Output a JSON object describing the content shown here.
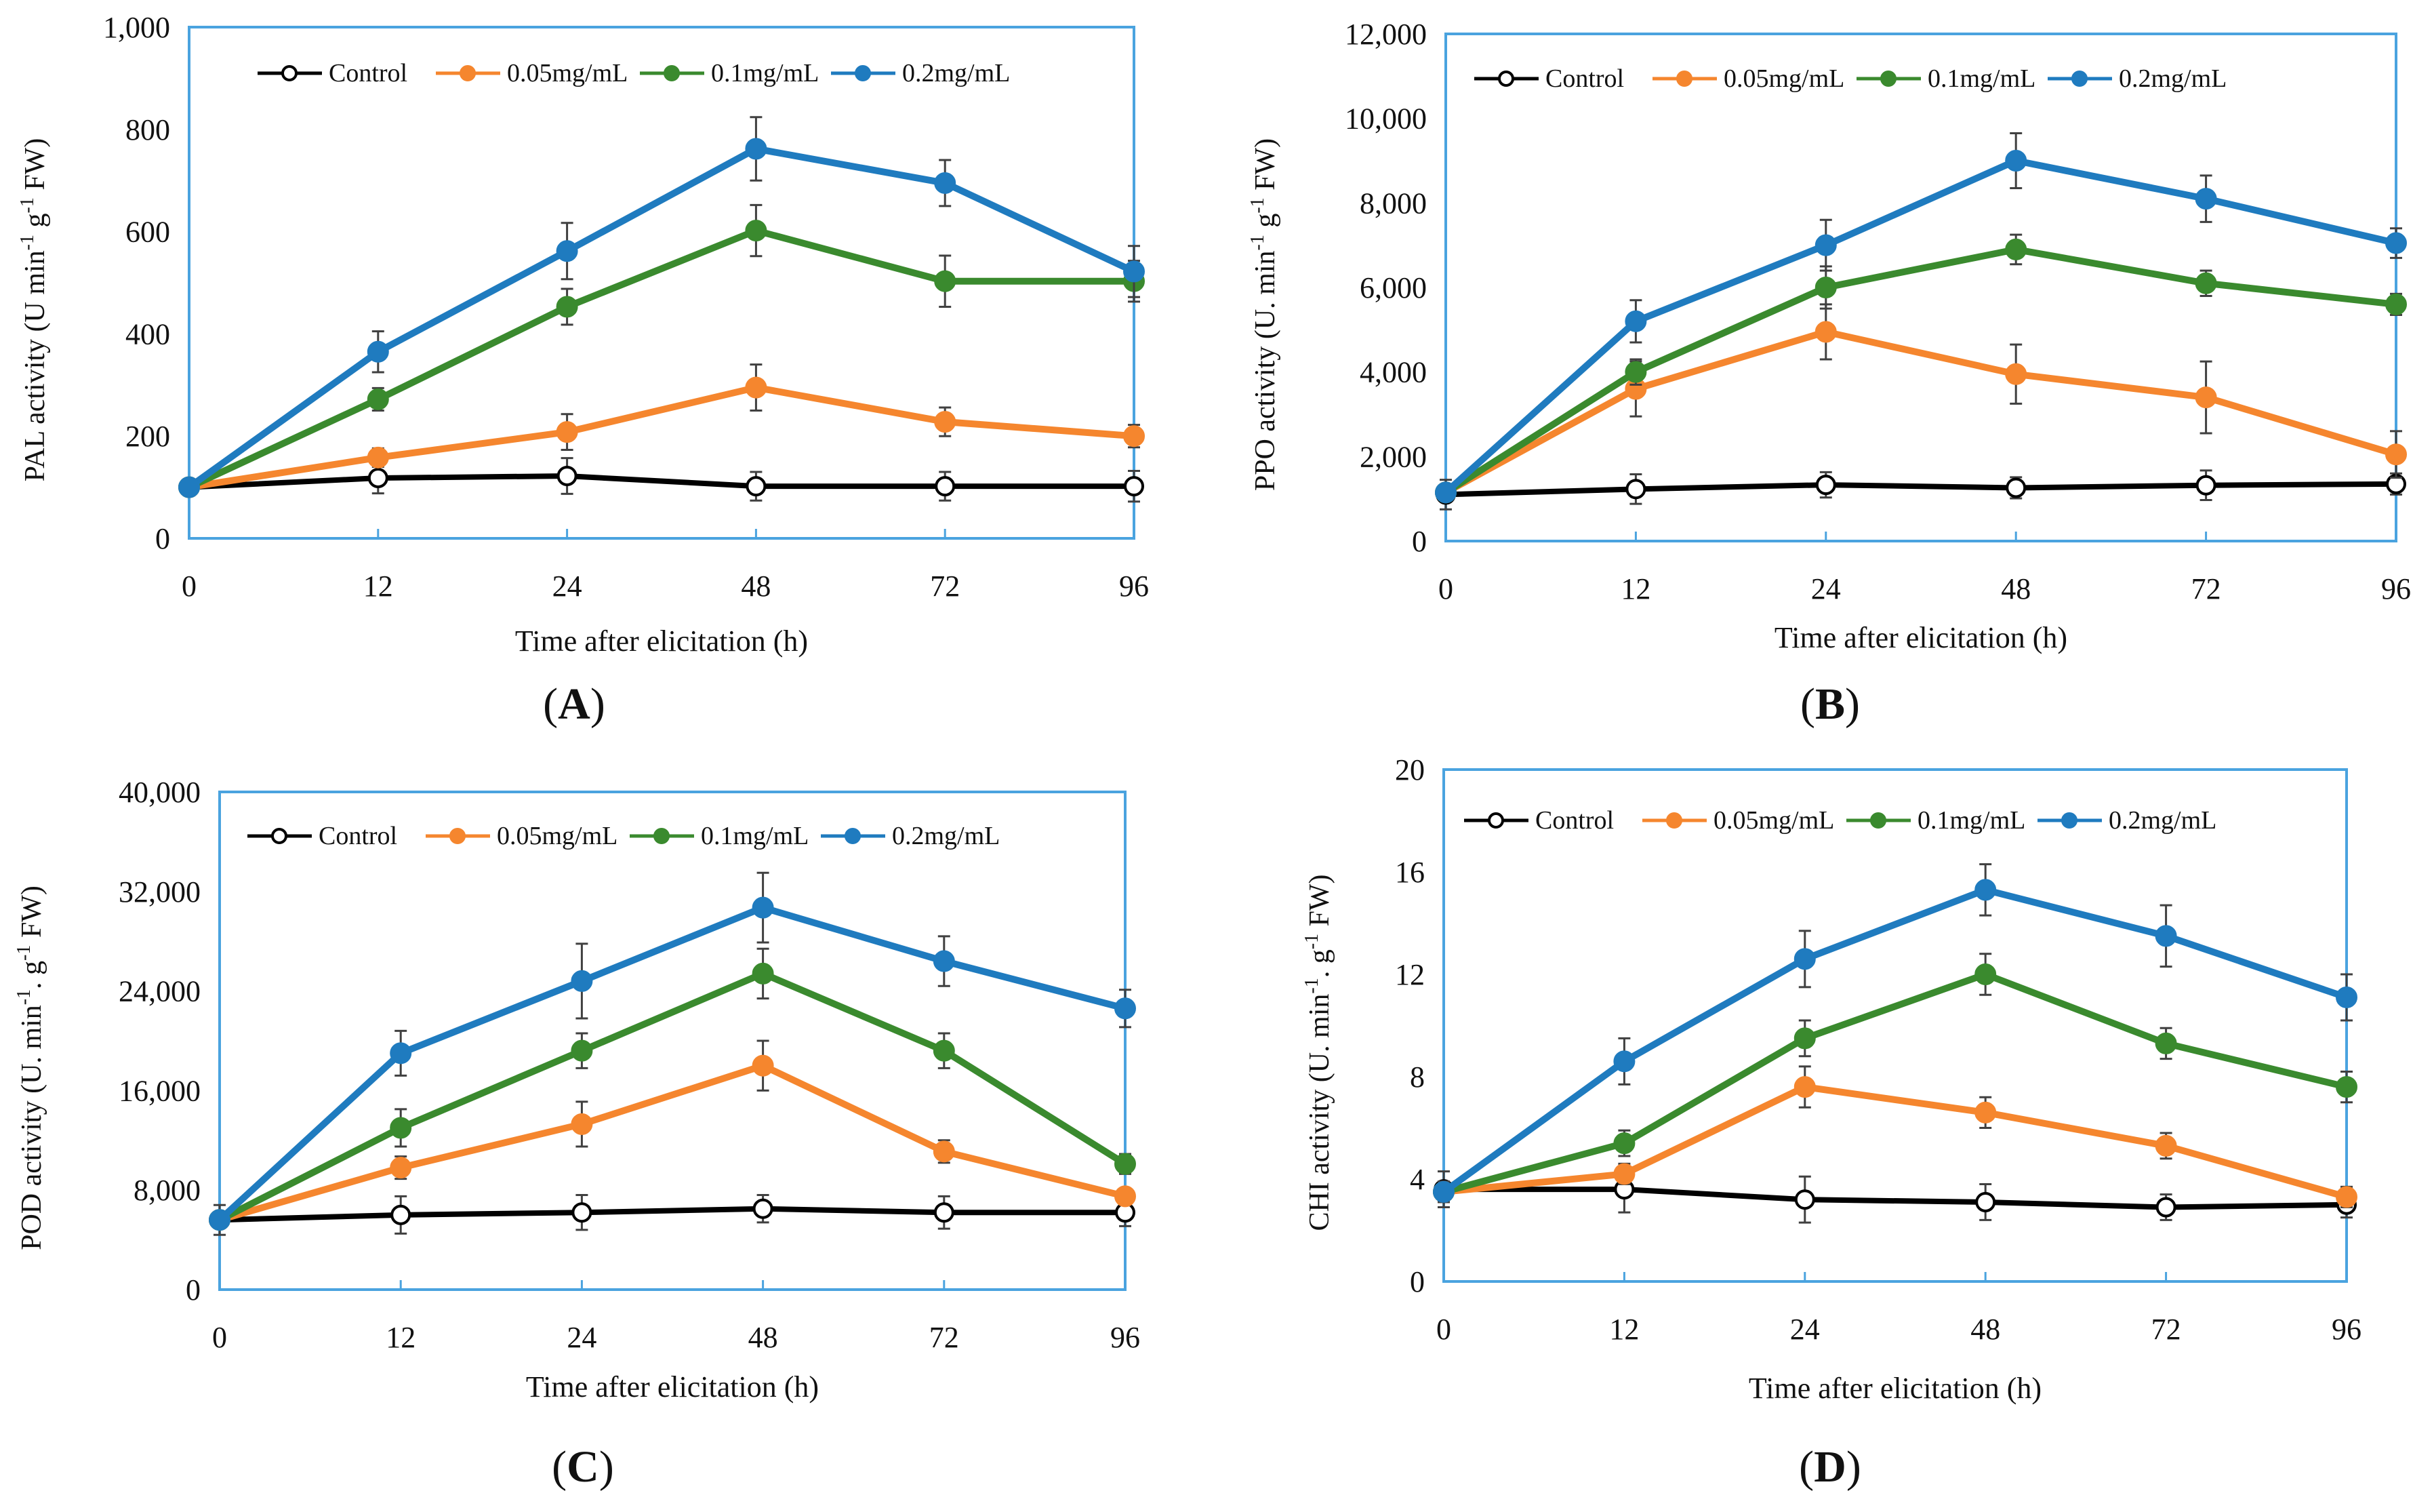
{
  "colors": {
    "control": "#000000",
    "c005": "#f5862e",
    "c01": "#3a8a2e",
    "c02": "#1f7bbf",
    "frame": "#4aa3df",
    "err": "#404040"
  },
  "chart_data": [
    {
      "type": "line",
      "caption": "(A)",
      "caption_letter": "A",
      "title": "",
      "xlabel": "Time after elicitation (h)",
      "ylabel": "PAL activity (U min-1 g-1 FW)",
      "ylabel_main": "PAL activity (U min",
      "ylabel_sup1": "-1",
      "ylabel_mid": " g",
      "ylabel_sup2": "-1",
      "ylabel_end": " FW)",
      "categories": [
        "0",
        "12",
        "24",
        "48",
        "72",
        "96"
      ],
      "ylim": [
        0,
        1000
      ],
      "yticks": [
        0,
        200,
        400,
        600,
        800,
        1000
      ],
      "ytick_labels": [
        "0",
        "200",
        "400",
        "600",
        "800",
        "1,000"
      ],
      "legend": "top",
      "series": [
        {
          "name": "Control",
          "values": [
            100,
            118,
            122,
            102,
            102,
            102
          ],
          "errors": [
            15,
            30,
            35,
            28,
            28,
            30
          ]
        },
        {
          "name": "0.05mg/mL",
          "values": [
            100,
            158,
            208,
            295,
            228,
            200
          ],
          "errors": [
            12,
            18,
            35,
            45,
            28,
            22
          ]
        },
        {
          "name": "0.1mg/mL",
          "values": [
            100,
            272,
            453,
            602,
            503,
            503
          ],
          "errors": [
            12,
            22,
            35,
            50,
            50,
            40
          ]
        },
        {
          "name": "0.2mg/mL",
          "values": [
            100,
            365,
            562,
            762,
            695,
            522
          ],
          "errors": [
            12,
            40,
            55,
            62,
            45,
            50
          ]
        }
      ]
    },
    {
      "type": "line",
      "caption": "(B)",
      "caption_letter": "B",
      "title": "",
      "xlabel": "Time after elicitation (h)",
      "ylabel": "PPO activity (U. min-1 g-1 FW)",
      "ylabel_main": "PPO activity (U. min",
      "ylabel_sup1": "-1",
      "ylabel_mid": " g",
      "ylabel_sup2": "-1",
      "ylabel_end": " FW)",
      "categories": [
        "0",
        "12",
        "24",
        "48",
        "72",
        "96"
      ],
      "ylim": [
        0,
        12000
      ],
      "yticks": [
        0,
        2000,
        4000,
        6000,
        8000,
        10000,
        12000
      ],
      "ytick_labels": [
        "0",
        "2,000",
        "4,000",
        "6,000",
        "8,000",
        "10,000",
        "12,000"
      ],
      "legend": "top",
      "series": [
        {
          "name": "Control",
          "values": [
            1100,
            1230,
            1330,
            1260,
            1320,
            1350
          ],
          "errors": [
            350,
            350,
            300,
            250,
            350,
            250
          ]
        },
        {
          "name": "0.05mg/mL",
          "values": [
            1150,
            3600,
            4950,
            3950,
            3400,
            2050
          ],
          "errors": [
            150,
            650,
            650,
            700,
            850,
            550
          ]
        },
        {
          "name": "0.1mg/mL",
          "values": [
            1150,
            4000,
            6000,
            6900,
            6100,
            5600
          ],
          "errors": [
            150,
            300,
            500,
            350,
            300,
            250
          ]
        },
        {
          "name": "0.2mg/mL",
          "values": [
            1150,
            5200,
            7000,
            9000,
            8100,
            7050
          ],
          "errors": [
            150,
            500,
            600,
            650,
            550,
            350
          ]
        }
      ]
    },
    {
      "type": "line",
      "caption": "(C)",
      "caption_letter": "C",
      "title": "",
      "xlabel": "Time after elicitation (h)",
      "ylabel": "POD activity (U. min-1. g-1 FW)",
      "ylabel_main": "POD activity (U. min",
      "ylabel_sup1": "-1",
      "ylabel_mid": ". g",
      "ylabel_sup2": "-1",
      "ylabel_end": " FW)",
      "categories": [
        "0",
        "12",
        "24",
        "48",
        "72",
        "96"
      ],
      "ylim": [
        0,
        40000
      ],
      "yticks": [
        0,
        8000,
        16000,
        24000,
        32000,
        40000
      ],
      "ytick_labels": [
        "0",
        "8,000",
        "16,000",
        "24,000",
        "32,000",
        "40,000"
      ],
      "legend": "top",
      "series": [
        {
          "name": "Control",
          "values": [
            5600,
            6000,
            6200,
            6500,
            6200,
            6200
          ],
          "errors": [
            1200,
            1500,
            1400,
            1100,
            1300,
            1100
          ]
        },
        {
          "name": "0.05mg/mL",
          "values": [
            5600,
            9800,
            13300,
            18000,
            11100,
            7500
          ],
          "errors": [
            600,
            900,
            1800,
            2000,
            900,
            600
          ]
        },
        {
          "name": "0.1mg/mL",
          "values": [
            5600,
            13000,
            19200,
            25400,
            19200,
            10100
          ],
          "errors": [
            600,
            1500,
            1400,
            2000,
            1400,
            800
          ]
        },
        {
          "name": "0.2mg/mL",
          "values": [
            5600,
            19000,
            24800,
            30700,
            26400,
            22600
          ],
          "errors": [
            600,
            1800,
            3000,
            2800,
            2000,
            1500
          ]
        }
      ]
    },
    {
      "type": "line",
      "caption": "(D)",
      "caption_letter": "D",
      "title": "",
      "xlabel": "Time after elicitation (h)",
      "ylabel": "CHI activity (U. min-1. g-1 FW)",
      "ylabel_main": "CHI activity (U. min",
      "ylabel_sup1": "-1",
      "ylabel_mid": ". g",
      "ylabel_sup2": "-1",
      "ylabel_end": " FW)",
      "categories": [
        "0",
        "12",
        "24",
        "48",
        "72",
        "96"
      ],
      "ylim": [
        0,
        20
      ],
      "yticks": [
        0,
        4,
        8,
        12,
        16,
        20
      ],
      "ytick_labels": [
        "0",
        "4",
        "8",
        "12",
        "16",
        "20"
      ],
      "legend": "top",
      "series": [
        {
          "name": "Control",
          "values": [
            3.6,
            3.6,
            3.2,
            3.1,
            2.9,
            3.0
          ],
          "errors": [
            0.7,
            0.9,
            0.9,
            0.7,
            0.5,
            0.5
          ]
        },
        {
          "name": "0.05mg/mL",
          "values": [
            3.5,
            4.2,
            7.6,
            6.6,
            5.3,
            3.3
          ],
          "errors": [
            0.4,
            0.4,
            0.8,
            0.6,
            0.5,
            0.4
          ]
        },
        {
          "name": "0.1mg/mL",
          "values": [
            3.5,
            5.4,
            9.5,
            12.0,
            9.3,
            7.6
          ],
          "errors": [
            0.4,
            0.5,
            0.7,
            0.8,
            0.6,
            0.6
          ]
        },
        {
          "name": "0.2mg/mL",
          "values": [
            3.5,
            8.6,
            12.6,
            15.3,
            13.5,
            11.1
          ],
          "errors": [
            0.4,
            0.9,
            1.1,
            1.0,
            1.2,
            0.9
          ]
        }
      ]
    }
  ]
}
